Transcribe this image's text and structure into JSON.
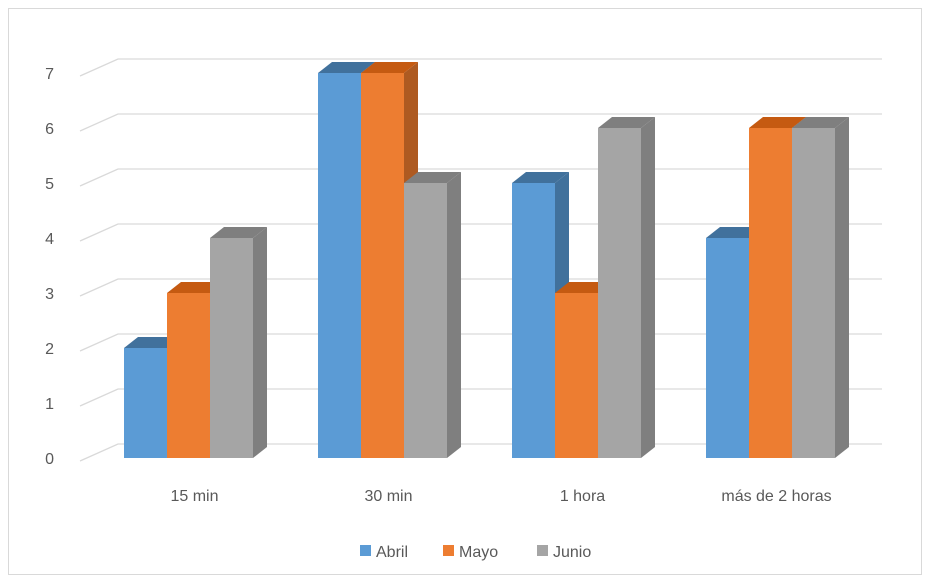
{
  "chart_data": {
    "type": "bar",
    "style": "3d-clustered-column",
    "categories": [
      "15 min",
      "30 min",
      "1 hora",
      "más de 2 horas"
    ],
    "series": [
      {
        "name": "Abril",
        "values": [
          2,
          7,
          5,
          4
        ],
        "color": "#5b9bd5",
        "top_color": "#41719c",
        "side_color": "#41719c"
      },
      {
        "name": "Mayo",
        "values": [
          3,
          7,
          3,
          6
        ],
        "color": "#ed7d31",
        "top_color": "#c55a11",
        "side_color": "#ae5a21"
      },
      {
        "name": "Junio",
        "values": [
          4,
          5,
          6,
          6
        ],
        "color": "#a5a5a5",
        "top_color": "#7f7f7f",
        "side_color": "#7f7f7f"
      }
    ],
    "ylim": [
      0,
      7
    ],
    "yticks": [
      "0",
      "1",
      "2",
      "3",
      "4",
      "5",
      "6",
      "7"
    ],
    "grid": true,
    "legend": "bottom",
    "title": "",
    "xlabel": "",
    "ylabel": ""
  }
}
